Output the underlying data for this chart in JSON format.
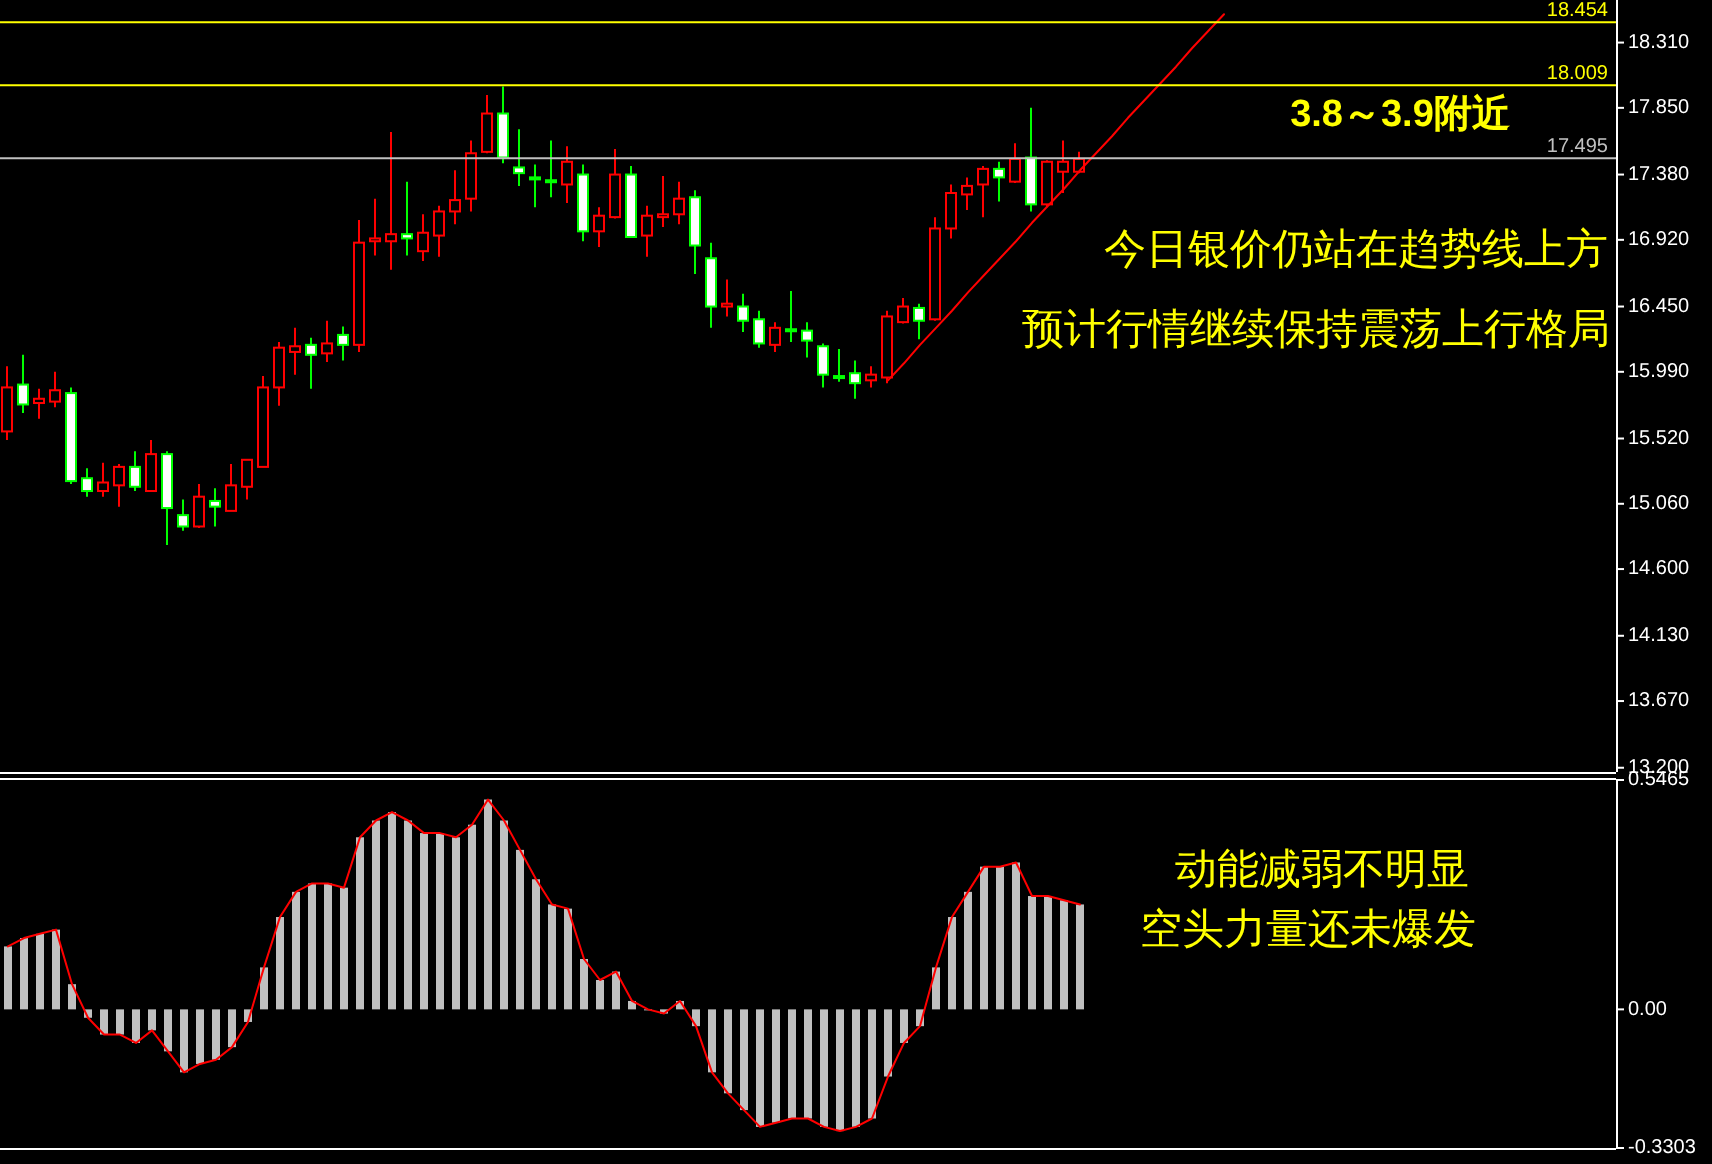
{
  "chart_data": [
    {
      "type": "candlestick",
      "categories": [
        null,
        null,
        null,
        null,
        null,
        null,
        null,
        null,
        null,
        null,
        null,
        null,
        null,
        null,
        null,
        null,
        null,
        null,
        null,
        null,
        null,
        null,
        null,
        null,
        null,
        null,
        null,
        null,
        null,
        null,
        null,
        null,
        null,
        null,
        null,
        null,
        null,
        null,
        null,
        null,
        null,
        null,
        null,
        null,
        null,
        null,
        null,
        null,
        null,
        null,
        null,
        null,
        null,
        null,
        null,
        null,
        null,
        null,
        null,
        null,
        null,
        null,
        null,
        null,
        null,
        null,
        null,
        null,
        null,
        null,
        null,
        null,
        null,
        null,
        null,
        null,
        null,
        null,
        null,
        null,
        null,
        null,
        null,
        null,
        null,
        null,
        null,
        null,
        null,
        null,
        null,
        null,
        null,
        null,
        null,
        null,
        null,
        null,
        null,
        null,
        null
      ],
      "ohlc": [
        [
          15.57,
          16.03,
          15.51,
          15.88
        ],
        [
          15.9,
          16.11,
          15.7,
          15.76
        ],
        [
          15.77,
          15.87,
          15.66,
          15.8
        ],
        [
          15.78,
          15.99,
          15.74,
          15.86
        ],
        [
          15.84,
          15.88,
          15.2,
          15.22
        ],
        [
          15.24,
          15.31,
          15.11,
          15.15
        ],
        [
          15.15,
          15.35,
          15.11,
          15.21
        ],
        [
          15.19,
          15.34,
          15.04,
          15.32
        ],
        [
          15.32,
          15.43,
          15.15,
          15.18
        ],
        [
          15.15,
          15.51,
          15.15,
          15.41
        ],
        [
          15.41,
          15.43,
          14.77,
          15.03
        ],
        [
          14.98,
          15.09,
          14.87,
          14.9
        ],
        [
          14.9,
          15.2,
          14.89,
          15.11
        ],
        [
          15.08,
          15.17,
          14.9,
          15.04
        ],
        [
          15.01,
          15.34,
          15.01,
          15.19
        ],
        [
          15.18,
          15.37,
          15.09,
          15.37
        ],
        [
          15.32,
          15.96,
          15.32,
          15.88
        ],
        [
          15.88,
          16.2,
          15.75,
          16.16
        ],
        [
          16.13,
          16.3,
          15.97,
          16.17
        ],
        [
          16.18,
          16.23,
          15.87,
          16.11
        ],
        [
          16.12,
          16.35,
          16.06,
          16.19
        ],
        [
          16.25,
          16.31,
          16.07,
          16.18
        ],
        [
          16.18,
          17.06,
          16.13,
          16.9
        ],
        [
          16.91,
          17.21,
          16.81,
          16.93
        ],
        [
          16.91,
          17.68,
          16.71,
          16.96
        ],
        [
          16.96,
          17.33,
          16.81,
          16.93
        ],
        [
          16.84,
          17.1,
          16.77,
          16.97
        ],
        [
          16.95,
          17.16,
          16.8,
          17.12
        ],
        [
          17.12,
          17.41,
          17.03,
          17.2
        ],
        [
          17.21,
          17.62,
          17.12,
          17.53
        ],
        [
          17.54,
          17.94,
          17.53,
          17.81
        ],
        [
          17.81,
          18.0,
          17.46,
          17.5
        ],
        [
          17.43,
          17.7,
          17.3,
          17.39
        ],
        [
          17.36,
          17.45,
          17.15,
          17.35
        ],
        [
          17.34,
          17.62,
          17.22,
          17.33
        ],
        [
          17.31,
          17.58,
          17.18,
          17.47
        ],
        [
          17.38,
          17.45,
          16.91,
          16.98
        ],
        [
          16.98,
          17.15,
          16.87,
          17.09
        ],
        [
          17.08,
          17.56,
          17.07,
          17.38
        ],
        [
          17.38,
          17.44,
          16.94,
          16.94
        ],
        [
          16.95,
          17.16,
          16.8,
          17.09
        ],
        [
          17.08,
          17.37,
          17.01,
          17.1
        ],
        [
          17.1,
          17.33,
          17.03,
          17.21
        ],
        [
          17.22,
          17.27,
          16.68,
          16.88
        ],
        [
          16.79,
          16.9,
          16.3,
          16.45
        ],
        [
          16.45,
          16.64,
          16.38,
          16.47
        ],
        [
          16.45,
          16.54,
          16.27,
          16.35
        ],
        [
          16.36,
          16.42,
          16.16,
          16.19
        ],
        [
          16.18,
          16.34,
          16.13,
          16.3
        ],
        [
          16.29,
          16.56,
          16.2,
          16.28
        ],
        [
          16.28,
          16.34,
          16.09,
          16.21
        ],
        [
          16.17,
          16.19,
          15.88,
          15.97
        ],
        [
          15.96,
          16.15,
          15.92,
          15.95
        ],
        [
          15.98,
          16.07,
          15.8,
          15.91
        ],
        [
          15.93,
          16.03,
          15.88,
          15.97
        ],
        [
          15.95,
          16.42,
          15.91,
          16.38
        ],
        [
          16.34,
          16.51,
          16.33,
          16.45
        ],
        [
          16.44,
          16.47,
          16.22,
          16.35
        ],
        [
          16.36,
          17.08,
          16.35,
          17.0
        ],
        [
          17.0,
          17.31,
          16.93,
          17.25
        ],
        [
          17.24,
          17.36,
          17.13,
          17.3
        ],
        [
          17.31,
          17.44,
          17.08,
          17.42
        ],
        [
          17.42,
          17.47,
          17.19,
          17.36
        ],
        [
          17.33,
          17.6,
          17.32,
          17.49
        ],
        [
          17.5,
          17.85,
          17.12,
          17.17
        ],
        [
          17.17,
          17.48,
          17.15,
          17.47
        ],
        [
          17.4,
          17.62,
          17.25,
          17.47
        ],
        [
          17.4,
          17.54,
          17.39,
          17.49
        ],
        null,
        null,
        null,
        null,
        null,
        null,
        null,
        null,
        null,
        null,
        null,
        null,
        null,
        null,
        null,
        null,
        null,
        null,
        null,
        null,
        null,
        null,
        null,
        null,
        null,
        null,
        null,
        null,
        null,
        null,
        null,
        null,
        null
      ],
      "ylim": [
        13.17,
        18.61
      ],
      "yticks": [
        {
          "value": 18.31,
          "label": "18.310"
        },
        {
          "value": 17.85,
          "label": "17.850"
        },
        {
          "value": 17.38,
          "label": "17.380"
        },
        {
          "value": 16.92,
          "label": "16.920"
        },
        {
          "value": 16.45,
          "label": "16.450"
        },
        {
          "value": 15.99,
          "label": "15.990"
        },
        {
          "value": 15.52,
          "label": "15.520"
        },
        {
          "value": 15.06,
          "label": "15.060"
        },
        {
          "value": 14.6,
          "label": "14.600"
        },
        {
          "value": 14.13,
          "label": "14.130"
        },
        {
          "value": 13.67,
          "label": "13.670"
        },
        {
          "value": 13.2,
          "label": "13.200"
        }
      ],
      "tick_labels": "y",
      "ref_lines": [
        {
          "axis": "y",
          "value": 18.454,
          "label": "18.454",
          "color": "#ffff00"
        },
        {
          "axis": "y",
          "value": 18.009,
          "label": "18.009",
          "color": "#ffff00"
        },
        {
          "axis": "y",
          "value": 17.495,
          "label": "17.495",
          "color": "#c0c0c0"
        }
      ],
      "series": [
        {
          "type": "line",
          "color": "#ff0000",
          "values": [
            null,
            null,
            null,
            null,
            null,
            null,
            null,
            null,
            null,
            null,
            null,
            null,
            null,
            null,
            null,
            null,
            null,
            null,
            null,
            null,
            null,
            null,
            null,
            null,
            null,
            null,
            null,
            null,
            null,
            null,
            null,
            null,
            null,
            null,
            null,
            null,
            null,
            null,
            null,
            null,
            null,
            null,
            null,
            null,
            null,
            null,
            null,
            null,
            null,
            null,
            null,
            null,
            null,
            null,
            null,
            15.93,
            16.05,
            16.18,
            16.3,
            16.42,
            16.55,
            16.67,
            16.79,
            16.91,
            17.04,
            17.16,
            17.28,
            17.41,
            17.53,
            17.65,
            17.78,
            17.9,
            18.02,
            18.14,
            18.27,
            18.39,
            18.51,
            null,
            null,
            null,
            null,
            null,
            null,
            null,
            null,
            null,
            null,
            null,
            null,
            null,
            null,
            null,
            null,
            null,
            null,
            null,
            null,
            null,
            null,
            null,
            null
          ]
        }
      ],
      "annotations": [
        "3.8～3.9附近",
        "今日银价仍站在趋势线上方",
        "预计行情继续保持震荡上行格局"
      ]
    },
    {
      "type": "bar",
      "categories": [
        null,
        null,
        null,
        null,
        null,
        null,
        null,
        null,
        null,
        null,
        null,
        null,
        null,
        null,
        null,
        null,
        null,
        null,
        null,
        null,
        null,
        null,
        null,
        null,
        null,
        null,
        null,
        null,
        null,
        null,
        null,
        null,
        null,
        null,
        null,
        null,
        null,
        null,
        null,
        null,
        null,
        null,
        null,
        null,
        null,
        null,
        null,
        null,
        null,
        null,
        null,
        null,
        null,
        null,
        null,
        null,
        null,
        null,
        null,
        null,
        null,
        null,
        null,
        null,
        null,
        null,
        null,
        null,
        null,
        null,
        null,
        null,
        null,
        null,
        null,
        null,
        null,
        null,
        null,
        null,
        null,
        null,
        null,
        null,
        null,
        null,
        null,
        null,
        null,
        null,
        null,
        null,
        null,
        null,
        null,
        null,
        null,
        null,
        null,
        null,
        null
      ],
      "ylim": [
        -0.3303,
        0.5465
      ],
      "yticks": [
        {
          "value": 0.5465,
          "label": "0.5465"
        },
        {
          "value": 0,
          "label": "0.00"
        },
        {
          "value": -0.3303,
          "label": "-0.3303"
        }
      ],
      "tick_labels": "y",
      "series": [
        {
          "color": "#c0c0c0",
          "values": [
            0.15,
            0.17,
            0.18,
            0.19,
            0.06,
            -0.02,
            -0.06,
            -0.06,
            -0.08,
            -0.05,
            -0.1,
            -0.15,
            -0.13,
            -0.12,
            -0.09,
            -0.03,
            0.1,
            0.22,
            0.28,
            0.3,
            0.3,
            0.29,
            0.41,
            0.45,
            0.47,
            0.45,
            0.42,
            0.42,
            0.41,
            0.44,
            0.5,
            0.45,
            0.38,
            0.31,
            0.25,
            0.24,
            0.12,
            0.07,
            0.09,
            0.02,
            0.0,
            -0.01,
            0.02,
            -0.04,
            -0.15,
            -0.2,
            -0.24,
            -0.28,
            -0.27,
            -0.26,
            -0.26,
            -0.28,
            -0.29,
            -0.28,
            -0.26,
            -0.16,
            -0.08,
            -0.04,
            0.1,
            0.22,
            0.28,
            0.34,
            0.34,
            0.35,
            0.27,
            0.27,
            0.26,
            0.25,
            null,
            null,
            null,
            null,
            null,
            null,
            null,
            null,
            null,
            null,
            null,
            null,
            null,
            null,
            null,
            null,
            null,
            null,
            null,
            null,
            null,
            null,
            null,
            null,
            null,
            null,
            null,
            null,
            null,
            null,
            null,
            null,
            null
          ]
        },
        {
          "type": "line",
          "color": "#ff0000",
          "values": [
            0.15,
            0.17,
            0.18,
            0.19,
            0.06,
            -0.02,
            -0.06,
            -0.06,
            -0.08,
            -0.05,
            -0.1,
            -0.15,
            -0.13,
            -0.12,
            -0.09,
            -0.03,
            0.1,
            0.22,
            0.28,
            0.3,
            0.3,
            0.29,
            0.41,
            0.45,
            0.47,
            0.45,
            0.42,
            0.42,
            0.41,
            0.44,
            0.5,
            0.45,
            0.38,
            0.31,
            0.25,
            0.24,
            0.12,
            0.07,
            0.09,
            0.02,
            0.0,
            -0.01,
            0.02,
            -0.04,
            -0.15,
            -0.2,
            -0.24,
            -0.28,
            -0.27,
            -0.26,
            -0.26,
            -0.28,
            -0.29,
            -0.28,
            -0.26,
            -0.16,
            -0.08,
            -0.04,
            0.1,
            0.22,
            0.28,
            0.34,
            0.34,
            0.35,
            0.27,
            0.27,
            0.26,
            0.25,
            null,
            null,
            null,
            null,
            null,
            null,
            null,
            null,
            null,
            null,
            null,
            null,
            null,
            null,
            null,
            null,
            null,
            null,
            null,
            null,
            null,
            null,
            null,
            null,
            null,
            null,
            null,
            null,
            null,
            null,
            null,
            null,
            null
          ]
        }
      ],
      "annotations": [
        "动能减弱不明显",
        "空头力量还未爆发"
      ]
    }
  ]
}
